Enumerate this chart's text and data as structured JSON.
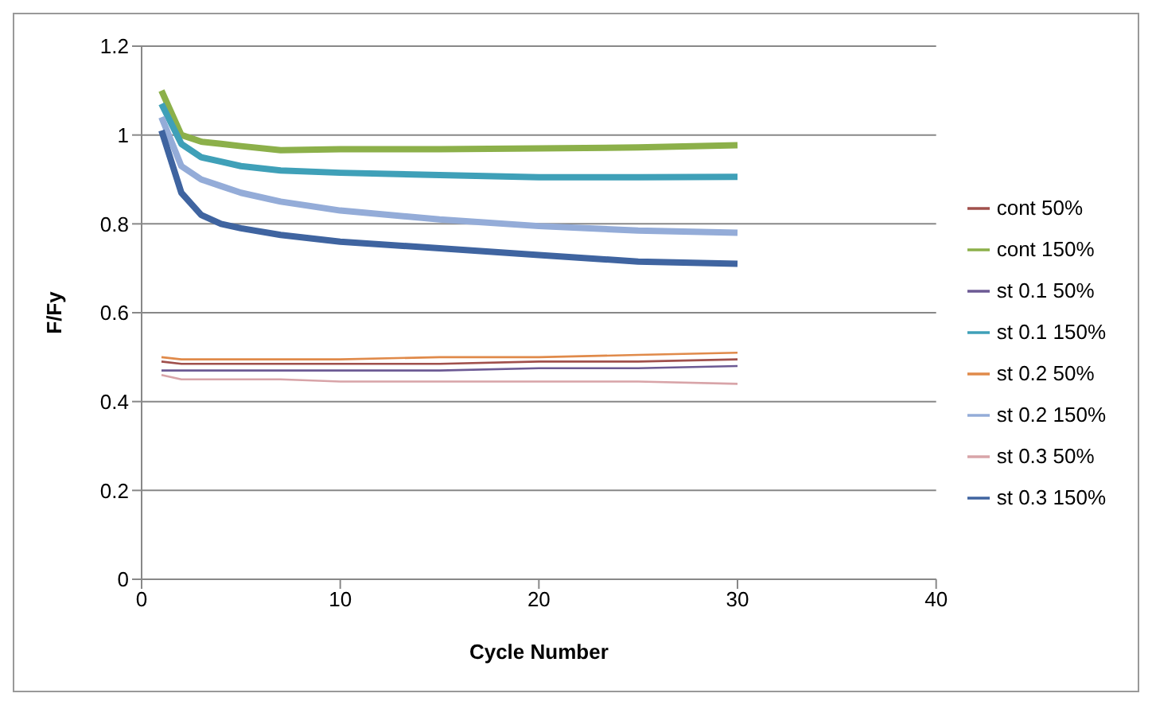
{
  "chart_data": {
    "type": "line",
    "xlabel": "Cycle Number",
    "ylabel": "F/Fy",
    "xlim": [
      0,
      40
    ],
    "xticks": [
      0,
      10,
      20,
      30,
      40
    ],
    "ylim": [
      0,
      1.2
    ],
    "yticks": [
      0,
      0.2,
      0.4,
      0.6,
      0.8,
      1,
      1.2
    ],
    "grid": "y",
    "legend": "right",
    "marker": "none",
    "line_style": "solid",
    "x": [
      1,
      2,
      3,
      4,
      5,
      7,
      10,
      15,
      20,
      25,
      30
    ],
    "series": [
      {
        "name": "cont 50%",
        "color": "#a0504c",
        "values": [
          0.49,
          0.485,
          0.485,
          0.485,
          0.485,
          0.485,
          0.485,
          0.485,
          0.49,
          0.49,
          0.495
        ]
      },
      {
        "name": "cont 150%",
        "color": "#8cb04a",
        "values": [
          1.1,
          1.0,
          0.985,
          0.98,
          0.975,
          0.966,
          0.968,
          0.968,
          0.97,
          0.972,
          0.977
        ]
      },
      {
        "name": "st 0.1 50%",
        "color": "#6c5a94",
        "values": [
          0.47,
          0.47,
          0.47,
          0.47,
          0.47,
          0.47,
          0.47,
          0.47,
          0.475,
          0.475,
          0.48
        ]
      },
      {
        "name": "st 0.1 150%",
        "color": "#3fa0b8",
        "values": [
          1.07,
          0.98,
          0.95,
          0.94,
          0.93,
          0.92,
          0.915,
          0.91,
          0.905,
          0.905,
          0.906
        ]
      },
      {
        "name": "st 0.2 50%",
        "color": "#e08a4a",
        "values": [
          0.5,
          0.495,
          0.495,
          0.495,
          0.495,
          0.495,
          0.495,
          0.5,
          0.5,
          0.505,
          0.51
        ]
      },
      {
        "name": "st 0.2 150%",
        "color": "#94acd8",
        "values": [
          1.04,
          0.93,
          0.9,
          0.885,
          0.87,
          0.85,
          0.83,
          0.81,
          0.795,
          0.785,
          0.78
        ]
      },
      {
        "name": "st 0.3 50%",
        "color": "#d8a4a8",
        "values": [
          0.46,
          0.45,
          0.45,
          0.45,
          0.45,
          0.45,
          0.445,
          0.445,
          0.445,
          0.445,
          0.44
        ]
      },
      {
        "name": "st 0.3 150%",
        "color": "#3f64a0",
        "values": [
          1.01,
          0.87,
          0.82,
          0.8,
          0.79,
          0.775,
          0.76,
          0.745,
          0.73,
          0.715,
          0.71
        ]
      }
    ]
  }
}
